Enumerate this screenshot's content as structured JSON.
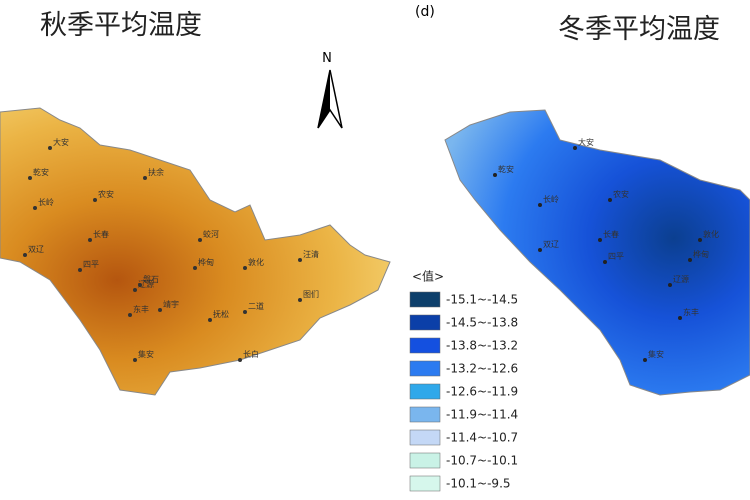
{
  "left_map": {
    "title": "秋季平均温度",
    "places": [
      "大安",
      "乾安",
      "长岭",
      "农安",
      "扶余",
      "长春",
      "双辽",
      "四平",
      "辽源",
      "东丰",
      "磐石",
      "桦甸",
      "蛟河",
      "敦化",
      "汪清",
      "图们",
      "二道",
      "抚松",
      "靖宇",
      "长白",
      "集安"
    ]
  },
  "right_map": {
    "panel": "(d)",
    "title": "冬季平均温度",
    "places": [
      "大安",
      "乾安",
      "长岭",
      "农安",
      "长春",
      "双辽",
      "四平",
      "辽源",
      "东丰",
      "桦甸",
      "敦化",
      "集安"
    ]
  },
  "north_arrow": "N",
  "legend": {
    "title": "<值>",
    "items": [
      {
        "label": "-15.1~-14.5",
        "color": "#0d3f6b"
      },
      {
        "label": "-14.5~-13.8",
        "color": "#0b3fa8"
      },
      {
        "label": "-13.8~-13.2",
        "color": "#1450e0"
      },
      {
        "label": "-13.2~-12.6",
        "color": "#2c7bf0"
      },
      {
        "label": "-12.6~-11.9",
        "color": "#2fa8ea"
      },
      {
        "label": "-11.9~-11.4",
        "color": "#7ab6ee"
      },
      {
        "label": "-11.4~-10.7",
        "color": "#c4d8f6"
      },
      {
        "label": "-10.7~-10.1",
        "color": "#c9f2e6"
      },
      {
        "label": "-10.1~-9.5",
        "color": "#d6f7ec"
      }
    ]
  }
}
